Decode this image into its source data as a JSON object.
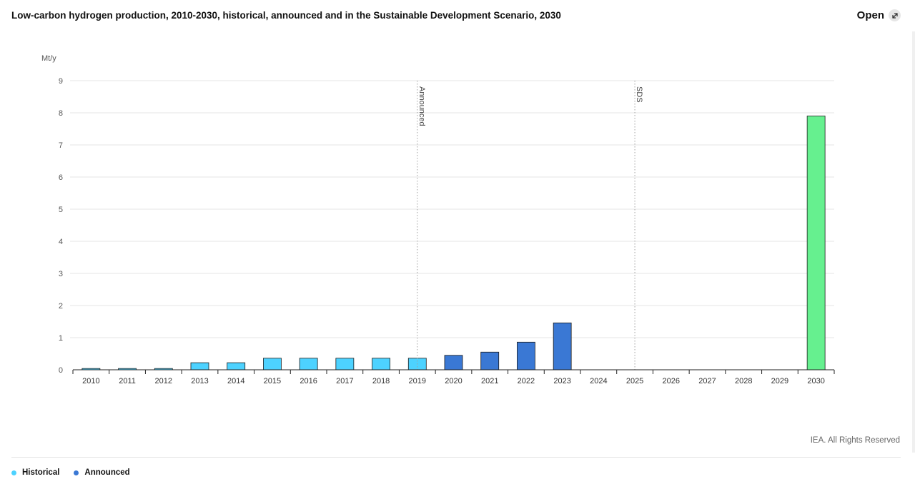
{
  "header": {
    "title": "Low-carbon hydrogen production, 2010-2030, historical, announced and in the Sustainable Development Scenario, 2030",
    "open_label": "Open",
    "open_icon": "expand-arrow-icon"
  },
  "footer": {
    "credit": "IEA. All Rights Reserved"
  },
  "legend": [
    {
      "label": "Historical",
      "color": "#4dd2ff"
    },
    {
      "label": "Announced",
      "color": "#3a78d4"
    }
  ],
  "chart_data": {
    "type": "bar",
    "ylabel": "Mt/y",
    "ylim": [
      0,
      9
    ],
    "yticks": [
      0,
      1,
      2,
      3,
      4,
      5,
      6,
      7,
      8,
      9
    ],
    "grid": true,
    "legend_position": "bottom-left",
    "categories": [
      "2010",
      "2011",
      "2012",
      "2013",
      "2014",
      "2015",
      "2016",
      "2017",
      "2018",
      "2019",
      "2020",
      "2021",
      "2022",
      "2023",
      "2024",
      "2025",
      "2026",
      "2027",
      "2028",
      "2029",
      "2030"
    ],
    "series": [
      {
        "name": "Historical",
        "color": "#4dd2ff",
        "values": [
          0.04,
          0.04,
          0.04,
          0.22,
          0.22,
          0.36,
          0.36,
          0.36,
          0.36,
          0.36,
          null,
          null,
          null,
          null,
          null,
          null,
          null,
          null,
          null,
          null,
          null
        ]
      },
      {
        "name": "Announced",
        "color": "#3a78d4",
        "values": [
          null,
          null,
          null,
          null,
          null,
          null,
          null,
          null,
          null,
          null,
          0.45,
          0.55,
          0.86,
          1.46,
          null,
          null,
          null,
          null,
          null,
          null,
          null
        ]
      },
      {
        "color": "#66f08f",
        "values": [
          null,
          null,
          null,
          null,
          null,
          null,
          null,
          null,
          null,
          null,
          null,
          null,
          null,
          null,
          null,
          null,
          null,
          null,
          null,
          null,
          7.9
        ]
      }
    ],
    "annotations": [
      {
        "text": "Announced",
        "x": "2019"
      },
      {
        "text": "SDS",
        "x": "2025"
      }
    ]
  }
}
